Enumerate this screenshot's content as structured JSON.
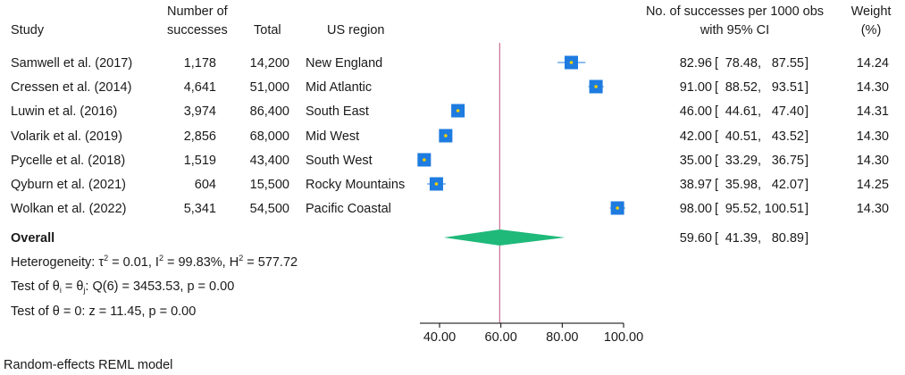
{
  "headers": {
    "study": "Study",
    "successes_line1": "Number of",
    "successes_line2": "successes",
    "total": "Total",
    "region": "US region",
    "effect_line1": "No. of successes per 1000 obs",
    "effect_line2": "with 95% CI",
    "weight_line1": "Weight",
    "weight_line2": "(%)"
  },
  "rows": [
    {
      "study": "Samwell et al. (2017)",
      "successes": "1,178",
      "total": "14,200",
      "region": "New England",
      "est": "82.96",
      "lo": "78.48",
      "hi": "87.55",
      "weight": "14.24"
    },
    {
      "study": "Cressen et al. (2014)",
      "successes": "4,641",
      "total": "51,000",
      "region": "Mid Atlantic",
      "est": "91.00",
      "lo": "88.52",
      "hi": "93.51",
      "weight": "14.30"
    },
    {
      "study": "Luwin et al. (2016)",
      "successes": "3,974",
      "total": "86,400",
      "region": "South East",
      "est": "46.00",
      "lo": "44.61",
      "hi": "47.40",
      "weight": "14.31"
    },
    {
      "study": "Volarik et al. (2019)",
      "successes": "2,856",
      "total": "68,000",
      "region": "Mid West",
      "est": "42.00",
      "lo": "40.51",
      "hi": "43.52",
      "weight": "14.30"
    },
    {
      "study": "Pycelle et al. (2018)",
      "successes": "1,519",
      "total": "43,400",
      "region": "South West",
      "est": "35.00",
      "lo": "33.29",
      "hi": "36.75",
      "weight": "14.30"
    },
    {
      "study": "Qyburn et al. (2021)",
      "successes": "604",
      "total": "15,500",
      "region": "Rocky Mountains",
      "est": "38.97",
      "lo": "35.98",
      "hi": "42.07",
      "weight": "14.25"
    },
    {
      "study": "Wolkan et al. (2022)",
      "successes": "5,341",
      "total": "54,500",
      "region": "Pacific Coastal",
      "est": "98.00",
      "lo": "95.52",
      "hi": "100.51",
      "weight": "14.30"
    }
  ],
  "overall": {
    "label": "Overall",
    "est": "59.60",
    "lo": "41.39",
    "hi": "80.89"
  },
  "stats": {
    "heterogeneity_prefix": "Heterogeneity: τ",
    "tau2_sup": "2",
    "tau2_val": " = 0.01, I",
    "i2_sup": "2",
    "i2_val": " = 99.83%, H",
    "h2_sup": "2",
    "h2_val": " = 577.72",
    "test1_prefix": "Test of θ",
    "test1_sub_i": "i",
    "test1_mid": " = θ",
    "test1_sub_j": "j",
    "test1_rest": ": Q(6) = 3453.53, p = 0.00",
    "test2": "Test of θ = 0: z = 11.45, p = 0.00"
  },
  "footer": "Random-effects REML model",
  "colors": {
    "marker": "#1e7be0",
    "marker_dot": "#f5d000",
    "ci_line": "#1e7be0",
    "diamond": "#1fb97a",
    "reference_line": "#c2537f",
    "axis": "#000000"
  },
  "chart_data": {
    "type": "forest",
    "xaxis": {
      "ticks": [
        40,
        60,
        80,
        100
      ],
      "tick_labels": [
        "40.00",
        "60.00",
        "80.00",
        "100.00"
      ],
      "range": [
        30,
        100
      ]
    },
    "reference_line": 59.6,
    "points": [
      {
        "name": "Samwell et al. (2017)",
        "est": 82.96,
        "lo": 78.48,
        "hi": 87.55
      },
      {
        "name": "Cressen et al. (2014)",
        "est": 91.0,
        "lo": 88.52,
        "hi": 93.51
      },
      {
        "name": "Luwin et al. (2016)",
        "est": 46.0,
        "lo": 44.61,
        "hi": 47.4
      },
      {
        "name": "Volarik et al. (2019)",
        "est": 42.0,
        "lo": 40.51,
        "hi": 43.52
      },
      {
        "name": "Pycelle et al. (2018)",
        "est": 35.0,
        "lo": 33.29,
        "hi": 36.75
      },
      {
        "name": "Qyburn et al. (2021)",
        "est": 38.97,
        "lo": 35.98,
        "hi": 42.07
      },
      {
        "name": "Wolkan et al. (2022)",
        "est": 98.0,
        "lo": 95.52,
        "hi": 100.51
      }
    ],
    "overall": {
      "est": 59.6,
      "lo": 41.39,
      "hi": 80.89
    }
  }
}
